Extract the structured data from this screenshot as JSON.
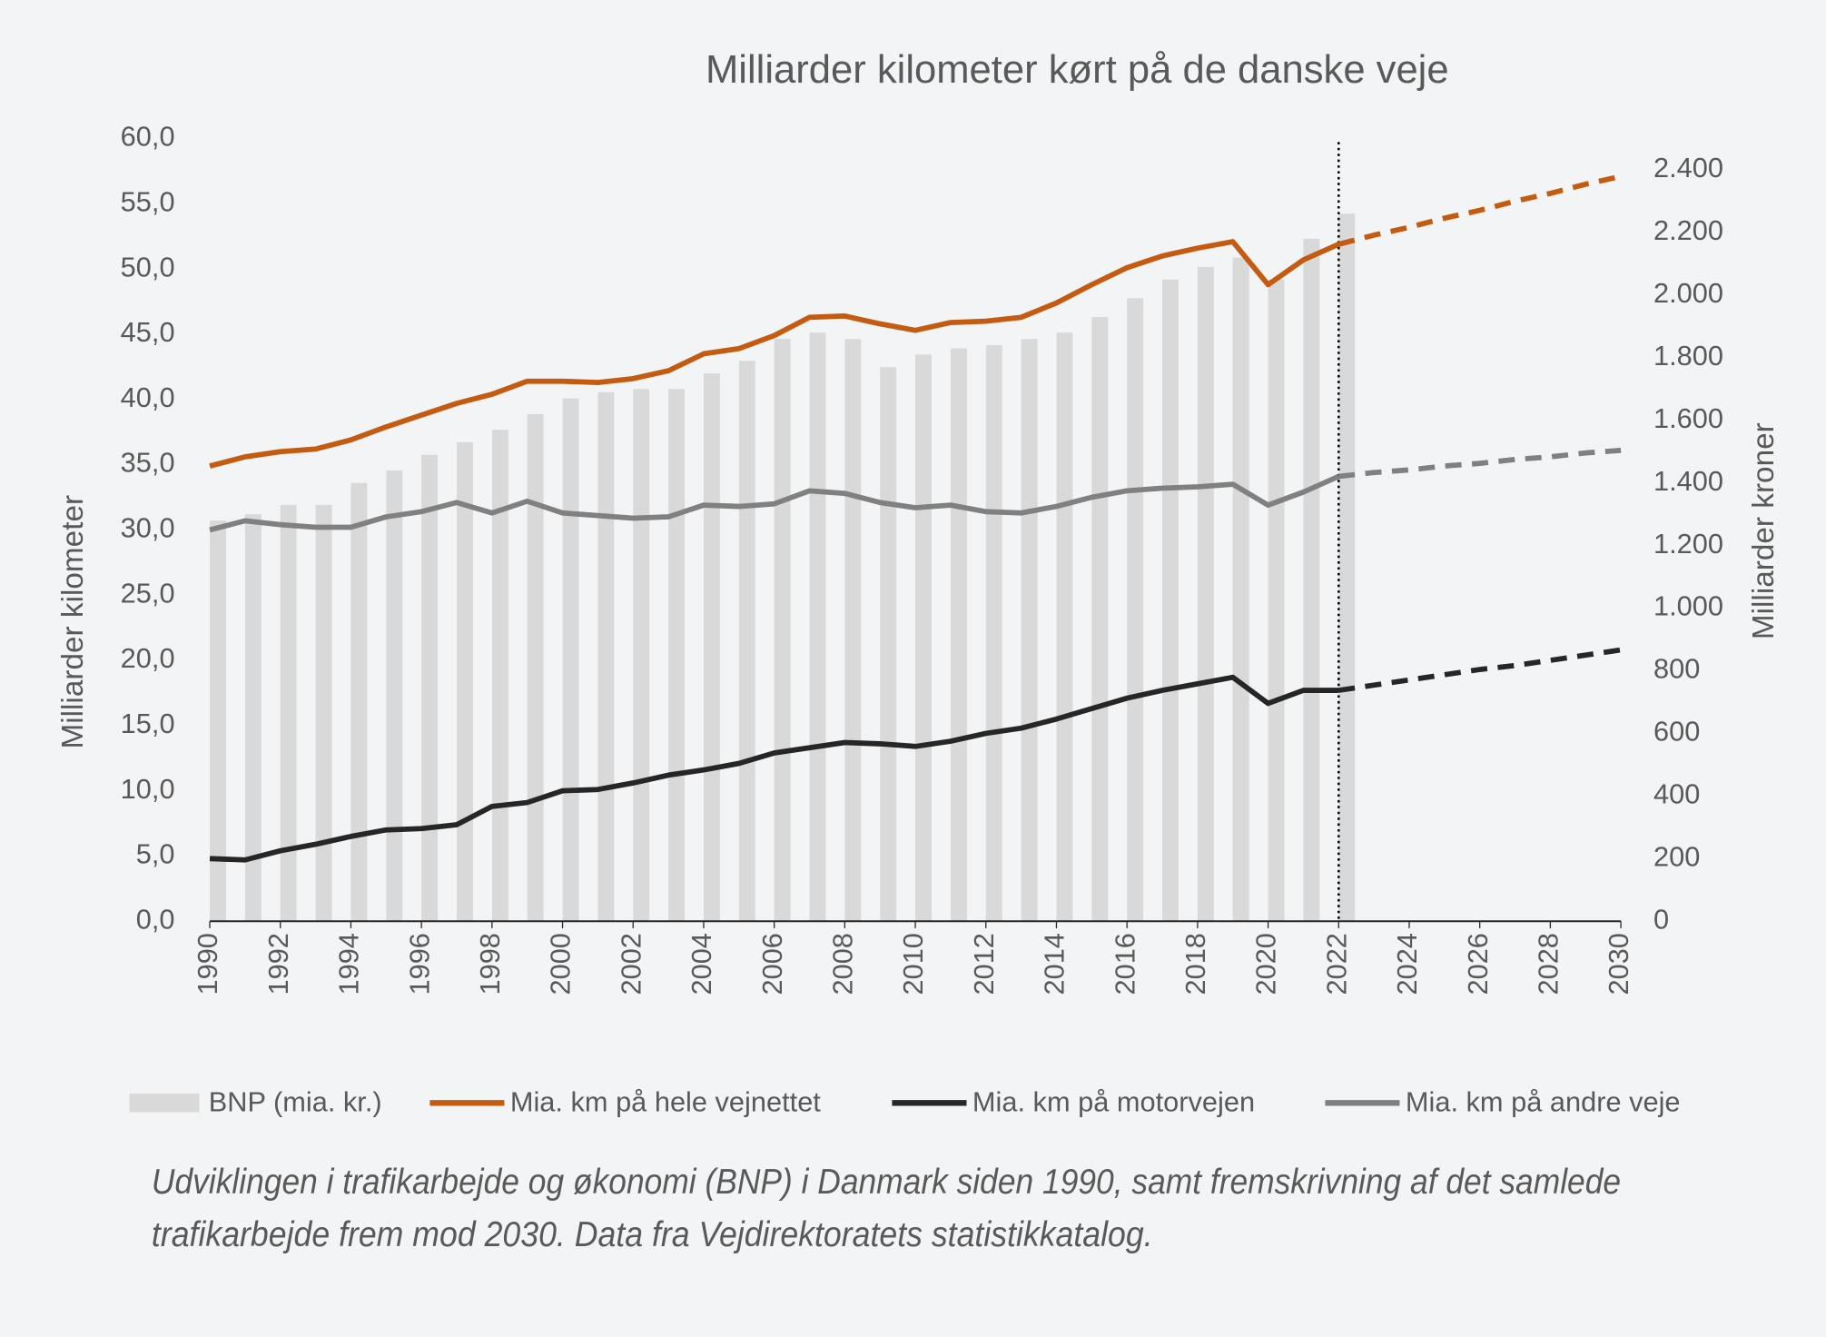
{
  "chart_data": {
    "type": "bar-line",
    "title": "Milliarder kilometer kørt på de danske veje",
    "y_axis_label": "Milliarder kilometer",
    "y2_axis_label": "Milliarder kroner",
    "caption": [
      "Udviklingen i trafikarbejde og økonomi (BNP) i Danmark siden 1990, samt fremskrivning af det samlede",
      "trafikarbejde frem mod 2030. Data fra Vejdirektoratets statistikkatalog."
    ],
    "x": [
      1990,
      1991,
      1992,
      1993,
      1994,
      1995,
      1996,
      1997,
      1998,
      1999,
      2000,
      2001,
      2002,
      2003,
      2004,
      2005,
      2006,
      2007,
      2008,
      2009,
      2010,
      2011,
      2012,
      2013,
      2014,
      2015,
      2016,
      2017,
      2018,
      2019,
      2020,
      2021,
      2022,
      2023,
      2024,
      2025,
      2026,
      2027,
      2028,
      2029,
      2030
    ],
    "xlim": [
      1990,
      2030
    ],
    "xticks": [
      1990,
      1992,
      1994,
      1996,
      1998,
      2000,
      2002,
      2004,
      2006,
      2008,
      2010,
      2012,
      2014,
      2016,
      2018,
      2020,
      2022,
      2024,
      2026,
      2028,
      2030
    ],
    "ylim": [
      0,
      60
    ],
    "yticks": [
      {
        "value": 0,
        "label": "0,0"
      },
      {
        "value": 5,
        "label": "5,0"
      },
      {
        "value": 10,
        "label": "10,0"
      },
      {
        "value": 15,
        "label": "15,0"
      },
      {
        "value": 20,
        "label": "20,0"
      },
      {
        "value": 25,
        "label": "25,0"
      },
      {
        "value": 30,
        "label": "30,0"
      },
      {
        "value": 35,
        "label": "35,0"
      },
      {
        "value": 40,
        "label": "40,0"
      },
      {
        "value": 45,
        "label": "45,0"
      },
      {
        "value": 50,
        "label": "50,0"
      },
      {
        "value": 55,
        "label": "55,0"
      },
      {
        "value": 60,
        "label": "60,0"
      }
    ],
    "y2lim": [
      0,
      2500
    ],
    "y2ticks": [
      0,
      200,
      400,
      600,
      800,
      {
        "value": 1000,
        "label": "1.000"
      },
      {
        "value": 1200,
        "label": "1.200"
      },
      {
        "value": 1400,
        "label": "1.400"
      },
      {
        "value": 1600,
        "label": "1.600"
      },
      {
        "value": 1800,
        "label": "1.800"
      },
      {
        "value": 2000,
        "label": "2.000"
      },
      {
        "value": 2200,
        "label": "2.200"
      },
      {
        "value": 2400,
        "label": "2.400"
      }
    ],
    "forecast_start": 2022,
    "grid": false,
    "legend": "bottom",
    "series": [
      {
        "name": "BNP (mia. kr.)",
        "type": "bar",
        "axis": "y2",
        "color": "#d9d9d9",
        "values": [
          1280,
          1300,
          1330,
          1330,
          1400,
          1440,
          1490,
          1530,
          1570,
          1620,
          1670,
          1690,
          1700,
          1700,
          1750,
          1790,
          1860,
          1880,
          1860,
          1770,
          1810,
          1830,
          1840,
          1860,
          1880,
          1930,
          1990,
          2050,
          2090,
          2120,
          2050,
          2180,
          2260,
          null,
          null,
          null,
          null,
          null,
          null,
          null,
          null
        ]
      },
      {
        "name": "Mia. km på hele vejnettet",
        "type": "line",
        "color": "#c55a11",
        "values": [
          34.9,
          35.6,
          36.0,
          36.2,
          36.9,
          37.9,
          38.8,
          39.7,
          40.4,
          41.4,
          41.4,
          41.3,
          41.6,
          42.2,
          43.5,
          43.9,
          44.9,
          46.3,
          46.4,
          45.8,
          45.3,
          45.9,
          46.0,
          46.3,
          47.4,
          48.8,
          50.1,
          51.0,
          51.6,
          52.1,
          48.8,
          50.7,
          51.9,
          52.6,
          53.2,
          53.9,
          54.5,
          55.2,
          55.8,
          56.5,
          57.1
        ]
      },
      {
        "name": "Mia. km på motorvejen",
        "type": "line",
        "color": "#262626",
        "values": [
          4.8,
          4.7,
          5.4,
          5.9,
          6.5,
          7.0,
          7.1,
          7.4,
          8.8,
          9.1,
          10.0,
          10.1,
          10.6,
          11.2,
          11.6,
          12.1,
          12.9,
          13.3,
          13.7,
          13.6,
          13.4,
          13.8,
          14.4,
          14.8,
          15.5,
          16.3,
          17.1,
          17.7,
          18.2,
          18.7,
          16.7,
          17.7,
          17.7,
          18.1,
          18.5,
          18.9,
          19.3,
          19.6,
          20.0,
          20.4,
          20.8
        ]
      },
      {
        "name": "Mia. km på andre veje",
        "type": "line",
        "color": "#808080",
        "values": [
          30.0,
          30.7,
          30.4,
          30.2,
          30.2,
          31.0,
          31.4,
          32.1,
          31.3,
          32.2,
          31.3,
          31.1,
          30.9,
          31.0,
          31.9,
          31.8,
          32.0,
          33.0,
          32.8,
          32.1,
          31.7,
          31.9,
          31.4,
          31.3,
          31.8,
          32.5,
          33.0,
          33.2,
          33.3,
          33.5,
          31.9,
          32.9,
          34.1,
          34.4,
          34.6,
          34.9,
          35.1,
          35.4,
          35.6,
          35.9,
          36.1
        ]
      }
    ]
  }
}
